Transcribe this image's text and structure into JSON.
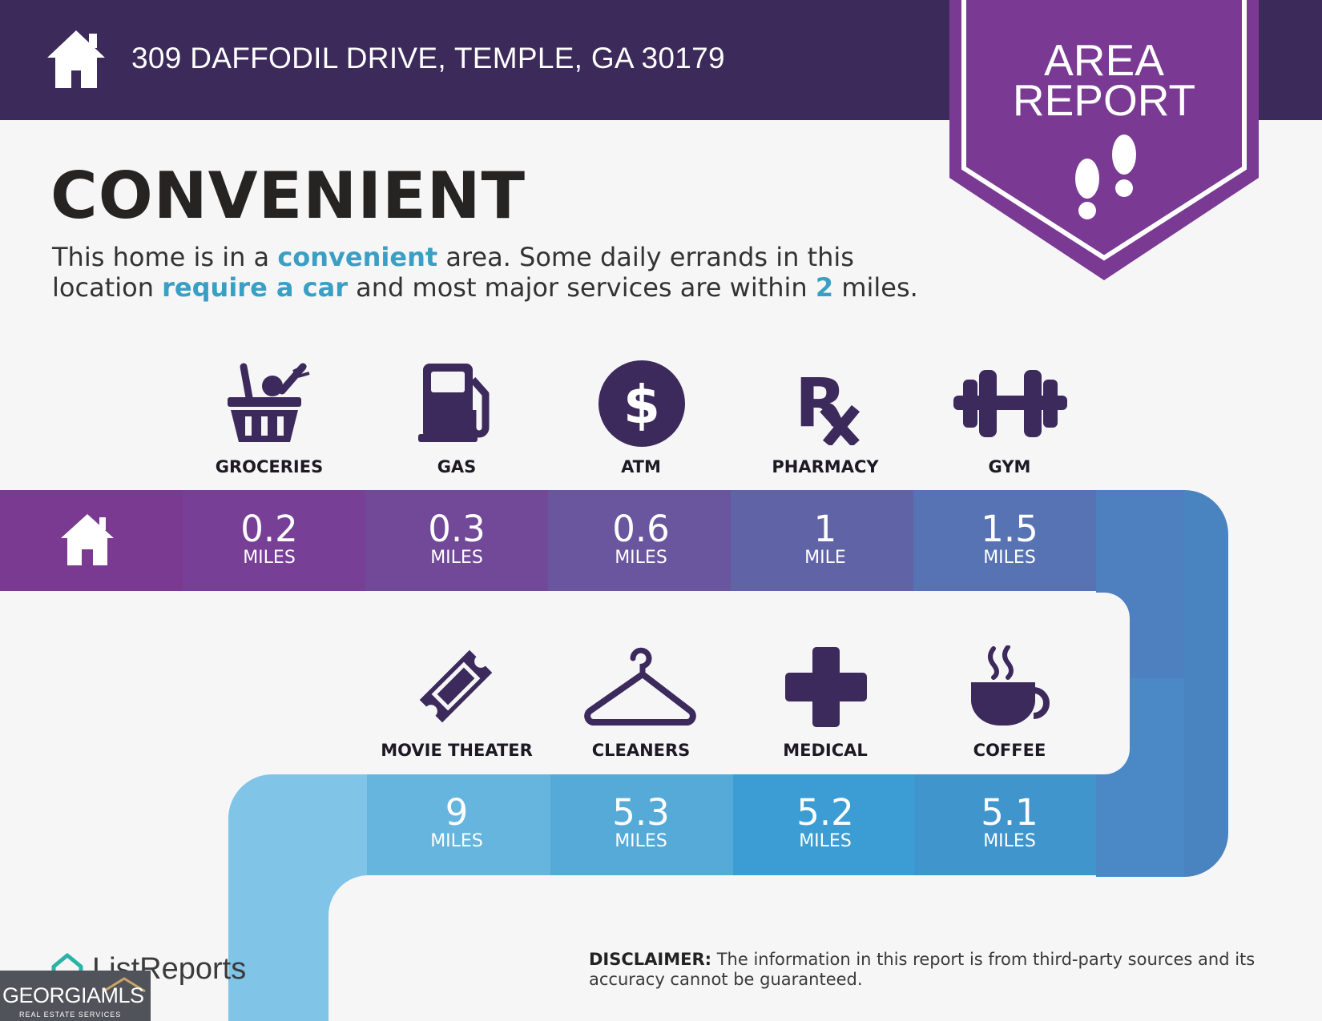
{
  "header": {
    "address": "309 DAFFODIL DRIVE, TEMPLE, GA 30179",
    "home_icon": "house-icon"
  },
  "badge": {
    "line1": "AREA",
    "line2": "REPORT",
    "icon": "footprints-icon",
    "color": "#7a3a93"
  },
  "main": {
    "title": "CONVENIENT",
    "desc_1": "This home is in a ",
    "desc_2": "convenient",
    "desc_3": " area. Some daily errands in this location ",
    "desc_4": "require a car",
    "desc_5": " and most major services are within ",
    "desc_6": "2",
    "desc_7": " miles."
  },
  "amenities_row1": [
    {
      "label": "GROCERIES",
      "distance": "0.2",
      "unit": "MILES",
      "icon": "grocery-basket-icon"
    },
    {
      "label": "GAS",
      "distance": "0.3",
      "unit": "MILES",
      "icon": "gas-pump-icon"
    },
    {
      "label": "ATM",
      "distance": "0.6",
      "unit": "MILES",
      "icon": "dollar-icon"
    },
    {
      "label": "PHARMACY",
      "distance": "1",
      "unit": "MILE",
      "icon": "rx-icon"
    },
    {
      "label": "GYM",
      "distance": "1.5",
      "unit": "MILES",
      "icon": "dumbbell-icon"
    }
  ],
  "amenities_row2": [
    {
      "label": "MOVIE THEATER",
      "distance": "9",
      "unit": "MILES",
      "icon": "ticket-icon"
    },
    {
      "label": "CLEANERS",
      "distance": "5.3",
      "unit": "MILES",
      "icon": "hanger-icon"
    },
    {
      "label": "MEDICAL",
      "distance": "5.2",
      "unit": "MILES",
      "icon": "medical-cross-icon"
    },
    {
      "label": "COFFEE",
      "distance": "5.1",
      "unit": "MILES",
      "icon": "coffee-cup-icon"
    }
  ],
  "footer": {
    "logo": "ListReports",
    "mls_text": "GEORGIAMLS",
    "mls_sub": "REAL ESTATE SERVICES",
    "disclaimer_label": "DISCLAIMER:",
    "disclaimer_text": " The information in this report is from third-party sources and its accuracy cannot be guaranteed."
  },
  "colors": {
    "header_bg": "#3c2a5a",
    "accent": "#3a9fc4",
    "icon": "#3d2a5c"
  }
}
